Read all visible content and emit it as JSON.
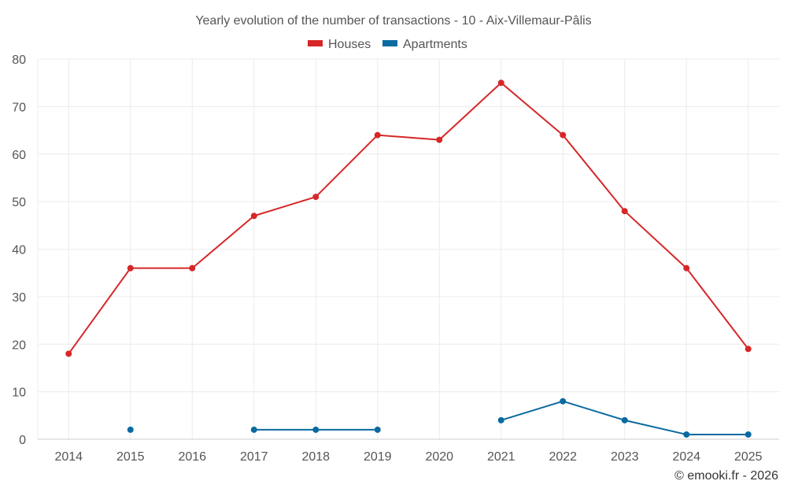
{
  "chart_data": {
    "type": "line",
    "title": "Yearly evolution of the number of transactions - 10 - Aix-Villemaur-Pâlis",
    "categories": [
      "2014",
      "2015",
      "2016",
      "2017",
      "2018",
      "2019",
      "2020",
      "2021",
      "2022",
      "2023",
      "2024",
      "2025"
    ],
    "ylim": [
      0,
      80
    ],
    "yticks": [
      0,
      10,
      20,
      30,
      40,
      50,
      60,
      70,
      80
    ],
    "xlabel": "",
    "ylabel": "",
    "grid": true,
    "legend_position": "top-center",
    "series": [
      {
        "name": "Houses",
        "color": "#d62728",
        "values": [
          18,
          36,
          36,
          47,
          51,
          64,
          63,
          75,
          64,
          48,
          36,
          19
        ]
      },
      {
        "name": "Apartments",
        "color": "#0a6aa1",
        "values": [
          null,
          2,
          null,
          2,
          2,
          2,
          null,
          4,
          8,
          4,
          1,
          1
        ]
      }
    ]
  },
  "credit": "© emooki.fr - 2026"
}
